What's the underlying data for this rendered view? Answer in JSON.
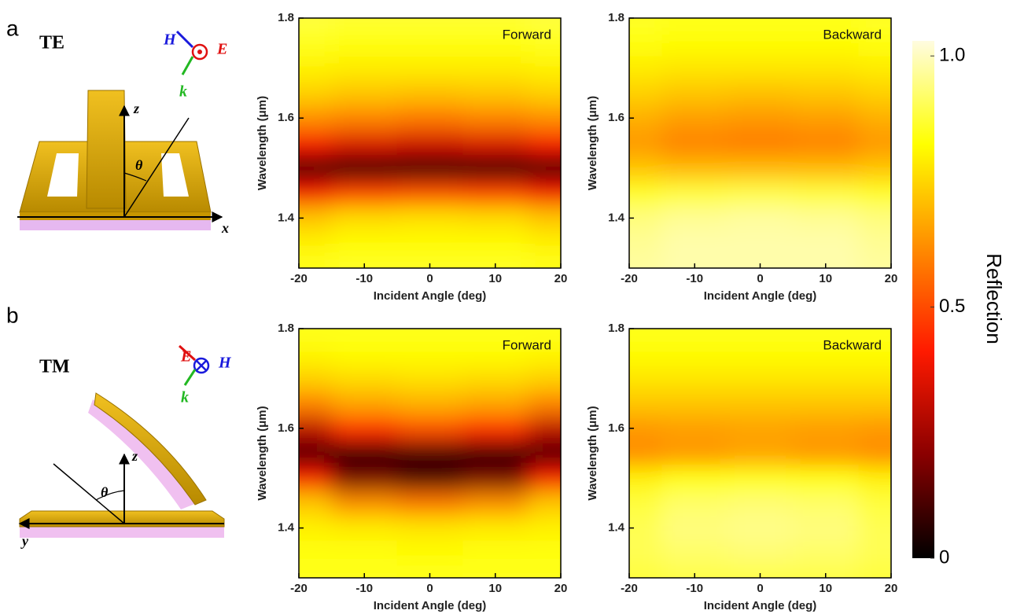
{
  "schematics": [
    {
      "label": "a",
      "mode": "TE",
      "field": [
        "H",
        "E",
        "k"
      ],
      "axes": [
        "z",
        "x"
      ],
      "angle": "θ"
    },
    {
      "label": "b",
      "mode": "TM",
      "field": [
        "E",
        "H",
        "k"
      ],
      "axes": [
        "z",
        "y"
      ],
      "angle": "θ"
    }
  ],
  "colorbar": {
    "label": "Reflection",
    "zlim": [
      0,
      1.03
    ],
    "ticks": [
      0,
      0.5,
      {
        "value": 1,
        "label": "1.0"
      }
    ],
    "colormap": [
      "#000000",
      "#8a0000",
      "#ff1a00",
      "#ff8c00",
      "#ffff00",
      "#fffce0"
    ]
  },
  "chart_data": [
    {
      "type": "heatmap",
      "title": "Forward",
      "xlabel": "Incident Angle (deg)",
      "ylabel": "Wavelength (μm)",
      "x": [
        -20,
        -10,
        0,
        10,
        20
      ],
      "y": [
        1.3,
        1.35,
        1.4,
        1.45,
        1.5,
        1.55,
        1.6,
        1.65,
        1.7,
        1.75,
        1.8
      ],
      "xlim": [
        -20,
        20
      ],
      "ylim": [
        1.3,
        1.8
      ],
      "xticks": [
        -20,
        -10,
        0,
        10,
        20
      ],
      "yticks": [
        1.4,
        1.6,
        1.8
      ],
      "z": [
        [
          0.85,
          0.86,
          0.86,
          0.86,
          0.85
        ],
        [
          0.8,
          0.82,
          0.82,
          0.82,
          0.8
        ],
        [
          0.72,
          0.76,
          0.77,
          0.76,
          0.72
        ],
        [
          0.4,
          0.48,
          0.5,
          0.48,
          0.4
        ],
        [
          0.08,
          0.05,
          0.05,
          0.05,
          0.08
        ],
        [
          0.4,
          0.35,
          0.33,
          0.35,
          0.4
        ],
        [
          0.62,
          0.6,
          0.58,
          0.6,
          0.62
        ],
        [
          0.74,
          0.72,
          0.71,
          0.72,
          0.74
        ],
        [
          0.8,
          0.79,
          0.79,
          0.79,
          0.8
        ],
        [
          0.85,
          0.84,
          0.84,
          0.84,
          0.85
        ],
        [
          0.88,
          0.87,
          0.87,
          0.87,
          0.88
        ]
      ]
    },
    {
      "type": "heatmap",
      "title": "Backward",
      "xlabel": "Incident Angle (deg)",
      "ylabel": "Wavelength (μm)",
      "x": [
        -20,
        -10,
        0,
        10,
        20
      ],
      "y": [
        1.3,
        1.35,
        1.4,
        1.45,
        1.5,
        1.55,
        1.6,
        1.65,
        1.7,
        1.75,
        1.8
      ],
      "xlim": [
        -20,
        20
      ],
      "ylim": [
        1.3,
        1.8
      ],
      "xticks": [
        -20,
        -10,
        0,
        10,
        20
      ],
      "yticks": [
        1.4,
        1.6,
        1.8
      ],
      "z": [
        [
          0.97,
          0.98,
          0.98,
          0.98,
          0.97
        ],
        [
          0.96,
          0.98,
          0.98,
          0.98,
          0.96
        ],
        [
          0.94,
          0.96,
          0.97,
          0.96,
          0.94
        ],
        [
          0.86,
          0.88,
          0.89,
          0.88,
          0.86
        ],
        [
          0.72,
          0.7,
          0.7,
          0.7,
          0.72
        ],
        [
          0.64,
          0.6,
          0.59,
          0.6,
          0.64
        ],
        [
          0.68,
          0.65,
          0.64,
          0.65,
          0.68
        ],
        [
          0.74,
          0.72,
          0.71,
          0.72,
          0.74
        ],
        [
          0.79,
          0.78,
          0.78,
          0.78,
          0.79
        ],
        [
          0.83,
          0.82,
          0.82,
          0.82,
          0.83
        ],
        [
          0.86,
          0.85,
          0.85,
          0.85,
          0.86
        ]
      ]
    },
    {
      "type": "heatmap",
      "title": "Forward",
      "xlabel": "Incident Angle (deg)",
      "ylabel": "Wavelength (μm)",
      "x": [
        -20,
        -10,
        0,
        10,
        20
      ],
      "y": [
        1.3,
        1.35,
        1.4,
        1.45,
        1.5,
        1.55,
        1.6,
        1.65,
        1.7,
        1.75,
        1.8
      ],
      "xlim": [
        -20,
        20
      ],
      "ylim": [
        1.3,
        1.8
      ],
      "xticks": [
        -20,
        -10,
        0,
        10,
        20
      ],
      "yticks": [
        1.4,
        1.6,
        1.8
      ],
      "z": [
        [
          0.85,
          0.85,
          0.85,
          0.85,
          0.85
        ],
        [
          0.83,
          0.83,
          0.82,
          0.83,
          0.83
        ],
        [
          0.8,
          0.79,
          0.78,
          0.79,
          0.8
        ],
        [
          0.72,
          0.62,
          0.58,
          0.62,
          0.72
        ],
        [
          0.4,
          0.18,
          0.12,
          0.18,
          0.4
        ],
        [
          0.1,
          0.05,
          0.08,
          0.05,
          0.1
        ],
        [
          0.3,
          0.45,
          0.5,
          0.45,
          0.3
        ],
        [
          0.6,
          0.66,
          0.68,
          0.66,
          0.6
        ],
        [
          0.74,
          0.76,
          0.77,
          0.76,
          0.74
        ],
        [
          0.81,
          0.82,
          0.82,
          0.82,
          0.81
        ],
        [
          0.85,
          0.85,
          0.85,
          0.85,
          0.85
        ]
      ]
    },
    {
      "type": "heatmap",
      "title": "Backward",
      "xlabel": "Incident Angle (deg)",
      "ylabel": "Wavelength (μm)",
      "x": [
        -20,
        -10,
        0,
        10,
        20
      ],
      "y": [
        1.3,
        1.35,
        1.4,
        1.45,
        1.5,
        1.55,
        1.6,
        1.65,
        1.7,
        1.75,
        1.8
      ],
      "xlim": [
        -20,
        20
      ],
      "ylim": [
        1.3,
        1.8
      ],
      "xticks": [
        -20,
        -10,
        0,
        10,
        20
      ],
      "yticks": [
        1.4,
        1.6,
        1.8
      ],
      "z": [
        [
          0.88,
          0.89,
          0.89,
          0.89,
          0.88
        ],
        [
          0.9,
          0.92,
          0.93,
          0.92,
          0.9
        ],
        [
          0.9,
          0.94,
          0.95,
          0.94,
          0.9
        ],
        [
          0.88,
          0.92,
          0.93,
          0.92,
          0.88
        ],
        [
          0.8,
          0.84,
          0.85,
          0.84,
          0.8
        ],
        [
          0.62,
          0.64,
          0.66,
          0.64,
          0.62
        ],
        [
          0.64,
          0.65,
          0.66,
          0.65,
          0.64
        ],
        [
          0.72,
          0.72,
          0.72,
          0.72,
          0.72
        ],
        [
          0.78,
          0.78,
          0.78,
          0.78,
          0.78
        ],
        [
          0.82,
          0.82,
          0.82,
          0.82,
          0.82
        ],
        [
          0.85,
          0.85,
          0.85,
          0.85,
          0.85
        ]
      ]
    }
  ]
}
